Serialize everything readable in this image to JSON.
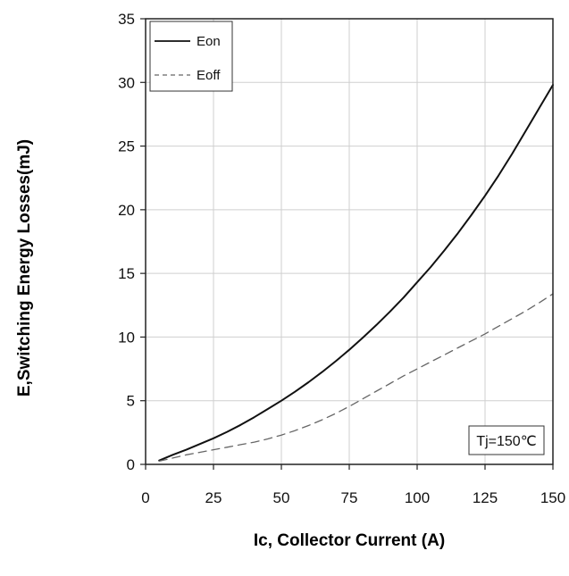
{
  "chart_data": {
    "type": "line",
    "xlabel": "Ic, Collector Current (A)",
    "ylabel": "E,Switching Energy Losses(mJ)",
    "xlim": [
      0,
      150
    ],
    "ylim": [
      0,
      35
    ],
    "xticks": [
      0,
      25,
      50,
      75,
      100,
      125,
      150
    ],
    "yticks": [
      0,
      5,
      10,
      15,
      20,
      25,
      30,
      35
    ],
    "grid": true,
    "legend_position": "top-left",
    "annotation": "Tj=150℃",
    "series": [
      {
        "name": "Eon",
        "style": "solid",
        "color": "#111111",
        "x": [
          5,
          10,
          15,
          20,
          25,
          30,
          35,
          40,
          45,
          50,
          55,
          60,
          65,
          70,
          75,
          80,
          85,
          90,
          95,
          100,
          105,
          110,
          115,
          120,
          125,
          130,
          135,
          140,
          145,
          150
        ],
        "y": [
          0.3,
          0.75,
          1.15,
          1.6,
          2.05,
          2.55,
          3.1,
          3.7,
          4.35,
          5.0,
          5.7,
          6.45,
          7.25,
          8.1,
          9.0,
          9.95,
          10.95,
          12.0,
          13.1,
          14.3,
          15.5,
          16.8,
          18.15,
          19.6,
          21.1,
          22.7,
          24.4,
          26.2,
          28.0,
          29.8
        ]
      },
      {
        "name": "Eoff",
        "style": "dashed",
        "color": "#666666",
        "x": [
          5,
          10,
          15,
          20,
          25,
          30,
          35,
          40,
          45,
          50,
          55,
          60,
          65,
          70,
          75,
          80,
          85,
          90,
          95,
          100,
          105,
          110,
          115,
          120,
          125,
          130,
          135,
          140,
          145,
          150
        ],
        "y": [
          0.25,
          0.5,
          0.75,
          0.95,
          1.15,
          1.35,
          1.55,
          1.75,
          2.0,
          2.3,
          2.65,
          3.05,
          3.5,
          4.0,
          4.55,
          5.15,
          5.75,
          6.35,
          6.95,
          7.5,
          8.05,
          8.6,
          9.15,
          9.7,
          10.25,
          10.85,
          11.45,
          12.05,
          12.7,
          13.4
        ]
      }
    ]
  }
}
